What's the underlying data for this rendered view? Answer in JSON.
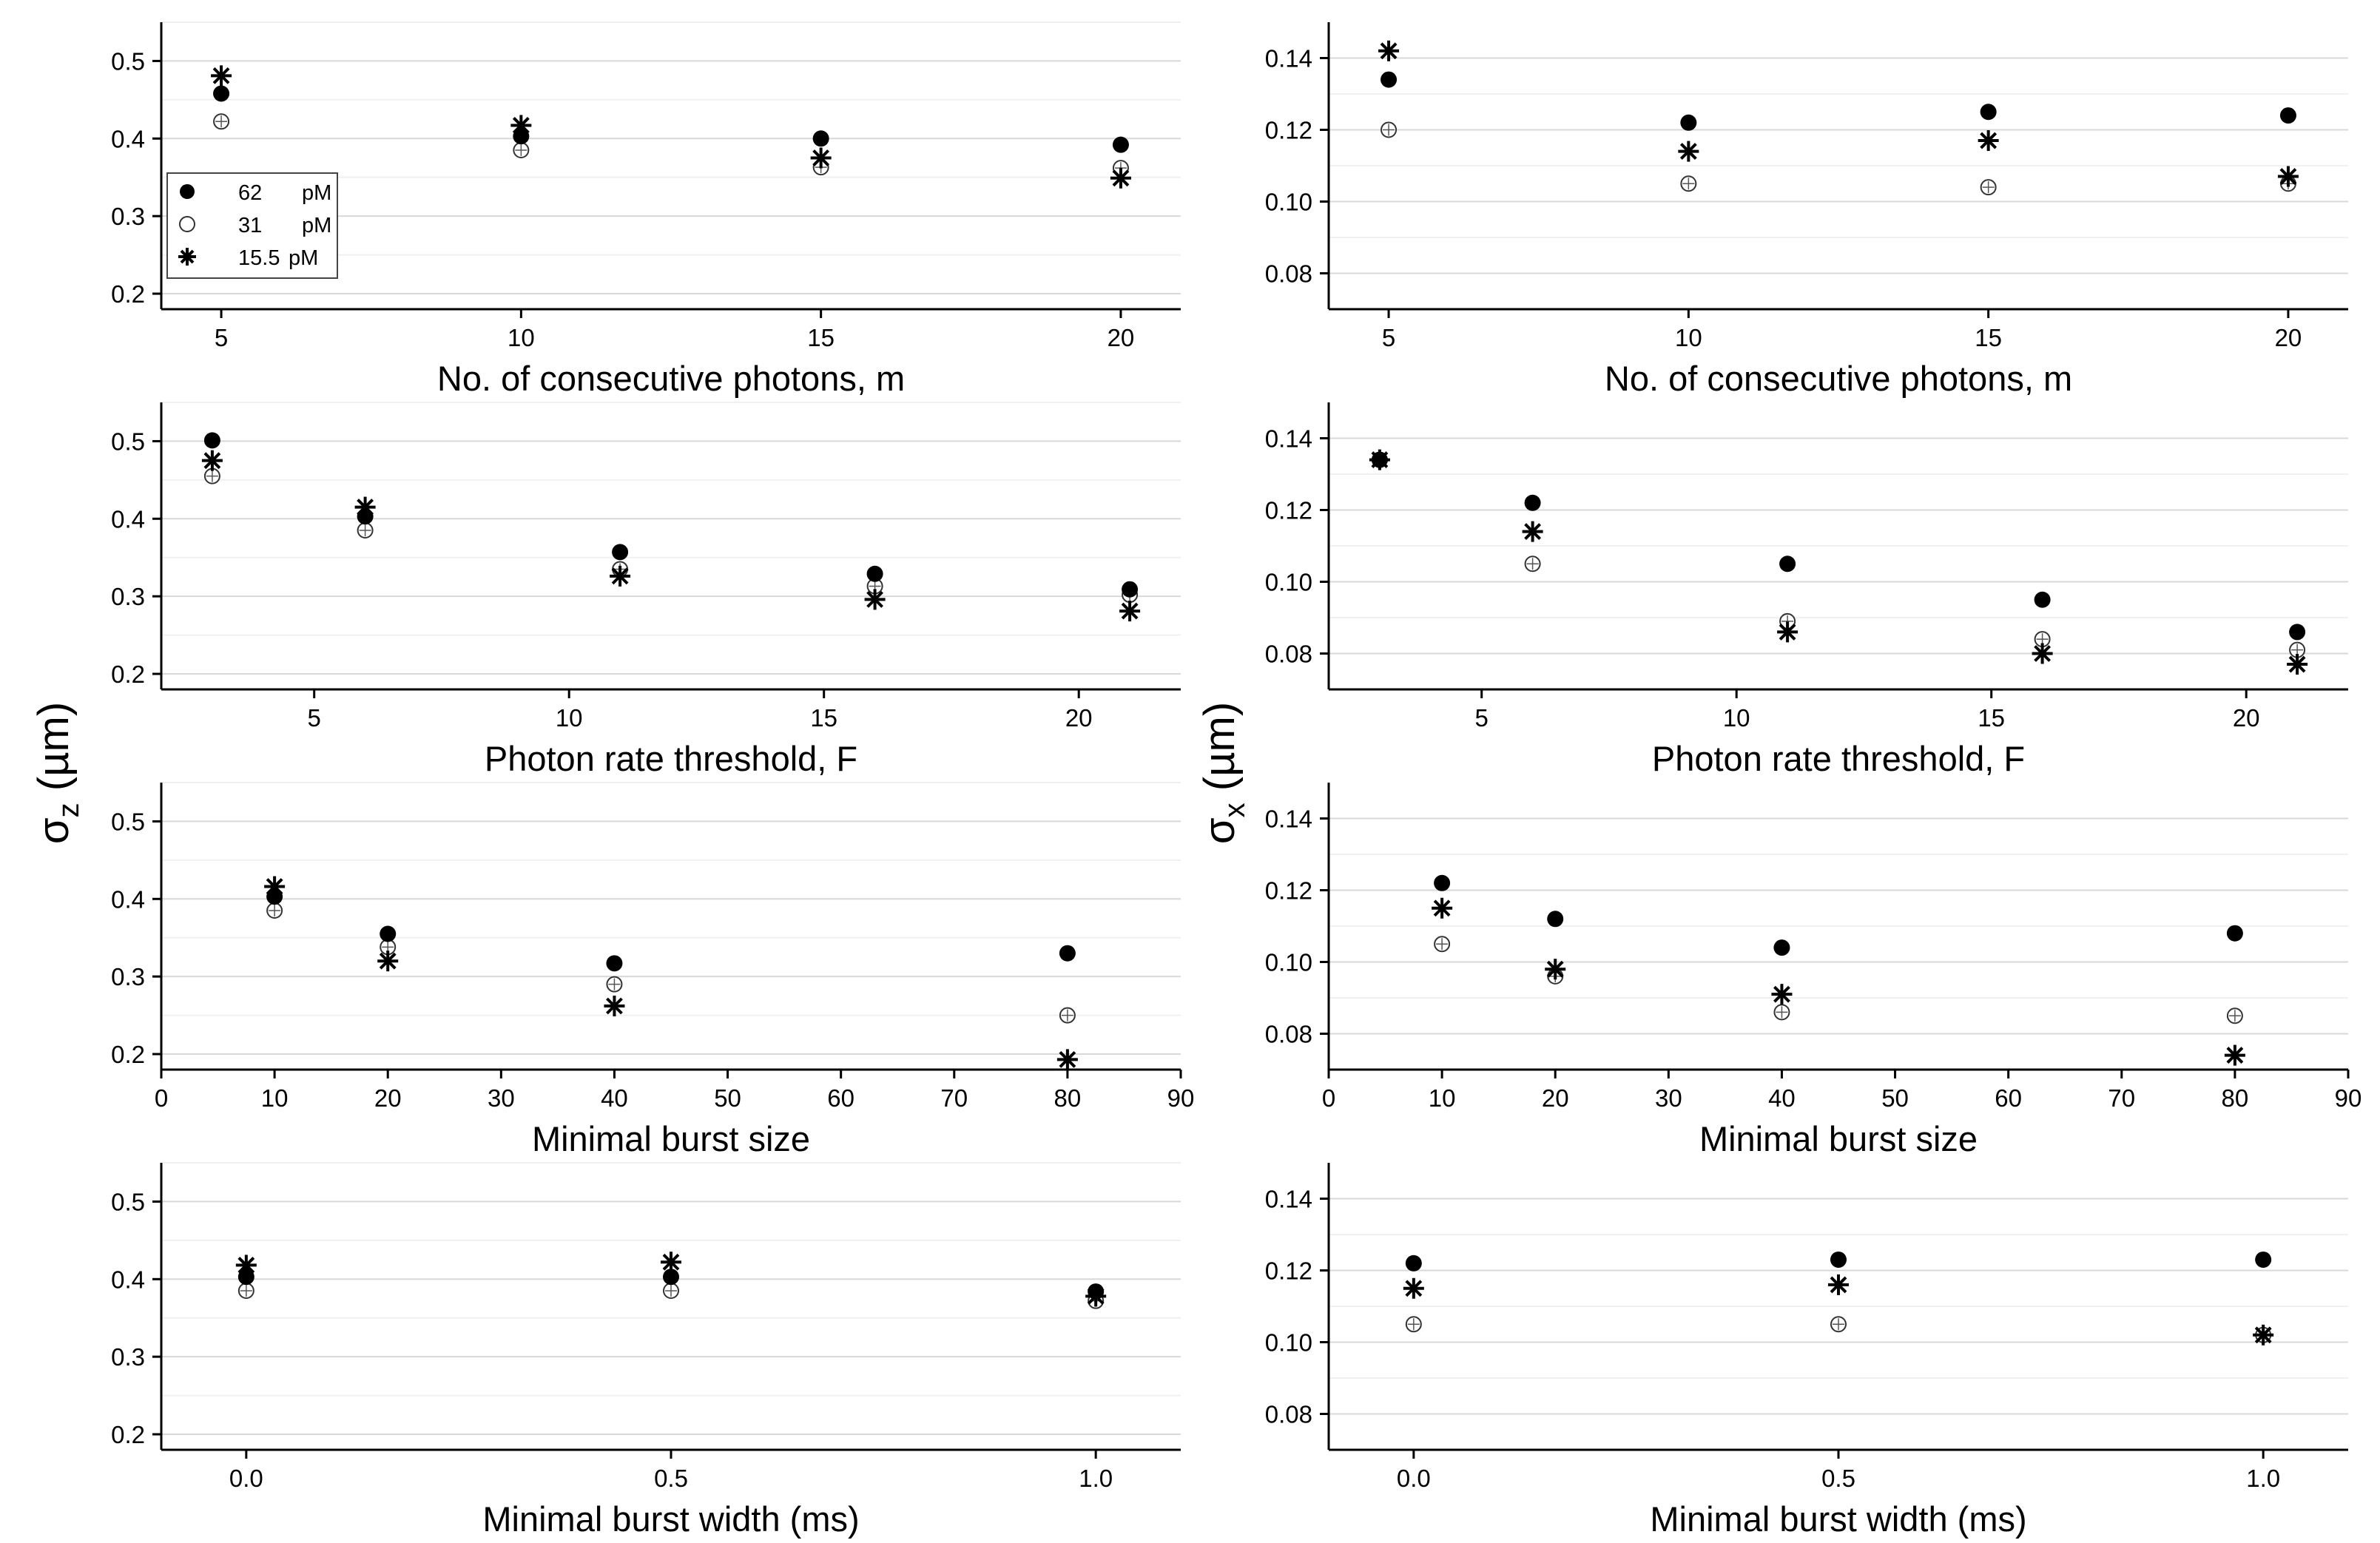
{
  "y_label_left": {
    "main": "σ",
    "sub": "z",
    "unit": "(µm)"
  },
  "y_label_right": {
    "main": "σ",
    "sub": "x",
    "unit": "(µm)"
  },
  "legend": [
    {
      "symbol": "filled-circle",
      "conc": "62",
      "unit": "pM"
    },
    {
      "symbol": "open-circle",
      "conc": "31",
      "unit": "pM"
    },
    {
      "symbol": "asterisk",
      "conc": "15.5",
      "unit": "pM"
    }
  ],
  "chart_data": [
    {
      "id": "z_m",
      "type": "scatter",
      "xlabel": "No. of consecutive photons, m",
      "ylabel": "σz (µm)",
      "xlim": [
        4,
        21
      ],
      "ylim": [
        0.18,
        0.55
      ],
      "xticks": [
        5,
        10,
        15,
        20
      ],
      "yticks": [
        0.2,
        0.3,
        0.4,
        0.5
      ],
      "ytick_labels": [
        "0.2",
        "0.3",
        "0.4",
        "0.5"
      ],
      "series": [
        {
          "name": "62 pM",
          "x": [
            5,
            10,
            15,
            20
          ],
          "y": [
            0.458,
            0.403,
            0.4,
            0.392
          ]
        },
        {
          "name": "31 pM",
          "x": [
            5,
            10,
            15,
            20
          ],
          "y": [
            0.422,
            0.385,
            0.363,
            0.362
          ]
        },
        {
          "name": "15.5 pM",
          "x": [
            5,
            10,
            15,
            20
          ],
          "y": [
            0.481,
            0.417,
            0.375,
            0.349
          ]
        }
      ]
    },
    {
      "id": "x_m",
      "type": "scatter",
      "xlabel": "No. of consecutive photons, m",
      "ylabel": "σx (µm)",
      "xlim": [
        4,
        21
      ],
      "ylim": [
        0.07,
        0.15
      ],
      "xticks": [
        5,
        10,
        15,
        20
      ],
      "yticks": [
        0.08,
        0.1,
        0.12,
        0.14
      ],
      "ytick_labels": [
        "0.08",
        "0.10",
        "0.12",
        "0.14"
      ],
      "series": [
        {
          "name": "62 pM",
          "x": [
            5,
            10,
            15,
            20
          ],
          "y": [
            0.134,
            0.122,
            0.125,
            0.124
          ]
        },
        {
          "name": "31 pM",
          "x": [
            5,
            10,
            15,
            20
          ],
          "y": [
            0.12,
            0.105,
            0.104,
            0.105
          ]
        },
        {
          "name": "15.5 pM",
          "x": [
            5,
            10,
            15,
            20
          ],
          "y": [
            0.142,
            0.114,
            0.117,
            0.107
          ]
        }
      ]
    },
    {
      "id": "z_F",
      "type": "scatter",
      "xlabel": "Photon rate threshold, F",
      "ylabel": "σz (µm)",
      "xlim": [
        2,
        22
      ],
      "ylim": [
        0.18,
        0.55
      ],
      "xticks": [
        5,
        10,
        15,
        20
      ],
      "yticks": [
        0.2,
        0.3,
        0.4,
        0.5
      ],
      "ytick_labels": [
        "0.2",
        "0.3",
        "0.4",
        "0.5"
      ],
      "series": [
        {
          "name": "62 pM",
          "x": [
            3,
            6,
            11,
            16,
            21
          ],
          "y": [
            0.501,
            0.403,
            0.357,
            0.329,
            0.309
          ]
        },
        {
          "name": "31 pM",
          "x": [
            3,
            6,
            11,
            16,
            21
          ],
          "y": [
            0.455,
            0.385,
            0.335,
            0.313,
            0.302
          ]
        },
        {
          "name": "15.5 pM",
          "x": [
            3,
            6,
            11,
            16,
            21
          ],
          "y": [
            0.475,
            0.415,
            0.326,
            0.296,
            0.281
          ]
        }
      ]
    },
    {
      "id": "x_F",
      "type": "scatter",
      "xlabel": "Photon rate threshold, F",
      "ylabel": "σx (µm)",
      "xlim": [
        2,
        22
      ],
      "ylim": [
        0.07,
        0.15
      ],
      "xticks": [
        5,
        10,
        15,
        20
      ],
      "yticks": [
        0.08,
        0.1,
        0.12,
        0.14
      ],
      "ytick_labels": [
        "0.08",
        "0.10",
        "0.12",
        "0.14"
      ],
      "series": [
        {
          "name": "62 pM",
          "x": [
            3,
            6,
            11,
            16,
            21
          ],
          "y": [
            0.134,
            0.122,
            0.105,
            0.095,
            0.086
          ]
        },
        {
          "name": "31 pM",
          "x": [
            3,
            6,
            11,
            16,
            21
          ],
          "y": [
            0.134,
            0.105,
            0.089,
            0.084,
            0.081
          ]
        },
        {
          "name": "15.5 pM",
          "x": [
            3,
            6,
            11,
            16,
            21
          ],
          "y": [
            0.134,
            0.114,
            0.086,
            0.08,
            0.077
          ]
        }
      ]
    },
    {
      "id": "z_size",
      "type": "scatter",
      "xlabel": "Minimal burst size",
      "ylabel": "σz (µm)",
      "xlim": [
        0,
        90
      ],
      "ylim": [
        0.18,
        0.55
      ],
      "xticks": [
        0,
        10,
        20,
        30,
        40,
        50,
        60,
        70,
        80,
        90
      ],
      "yticks": [
        0.2,
        0.3,
        0.4,
        0.5
      ],
      "ytick_labels": [
        "0.2",
        "0.3",
        "0.4",
        "0.5"
      ],
      "series": [
        {
          "name": "62 pM",
          "x": [
            10,
            20,
            40,
            80
          ],
          "y": [
            0.403,
            0.355,
            0.317,
            0.33
          ]
        },
        {
          "name": "31 pM",
          "x": [
            10,
            20,
            40,
            80
          ],
          "y": [
            0.385,
            0.338,
            0.29,
            0.25
          ]
        },
        {
          "name": "15.5 pM",
          "x": [
            10,
            20,
            40,
            80
          ],
          "y": [
            0.416,
            0.32,
            0.262,
            0.193
          ]
        }
      ]
    },
    {
      "id": "x_size",
      "type": "scatter",
      "xlabel": "Minimal burst size",
      "ylabel": "σx (µm)",
      "xlim": [
        0,
        90
      ],
      "ylim": [
        0.07,
        0.15
      ],
      "xticks": [
        0,
        10,
        20,
        30,
        40,
        50,
        60,
        70,
        80,
        90
      ],
      "yticks": [
        0.08,
        0.1,
        0.12,
        0.14
      ],
      "ytick_labels": [
        "0.08",
        "0.10",
        "0.12",
        "0.14"
      ],
      "series": [
        {
          "name": "62 pM",
          "x": [
            10,
            20,
            40,
            80
          ],
          "y": [
            0.122,
            0.112,
            0.104,
            0.108
          ]
        },
        {
          "name": "31 pM",
          "x": [
            10,
            20,
            40,
            80
          ],
          "y": [
            0.105,
            0.096,
            0.086,
            0.085
          ]
        },
        {
          "name": "15.5 pM",
          "x": [
            10,
            20,
            40,
            80
          ],
          "y": [
            0.115,
            0.098,
            0.091,
            0.074
          ]
        }
      ]
    },
    {
      "id": "z_width",
      "type": "scatter",
      "xlabel": "Minimal burst width (ms)",
      "ylabel": "σz (µm)",
      "xlim": [
        -0.1,
        1.1
      ],
      "ylim": [
        0.18,
        0.55
      ],
      "xticks": [
        0.0,
        0.5,
        1.0
      ],
      "xtick_labels": [
        "0.0",
        "0.5",
        "1.0"
      ],
      "yticks": [
        0.2,
        0.3,
        0.4,
        0.5
      ],
      "ytick_labels": [
        "0.2",
        "0.3",
        "0.4",
        "0.5"
      ],
      "series": [
        {
          "name": "62 pM",
          "x": [
            0.0,
            0.5,
            1.0
          ],
          "y": [
            0.403,
            0.403,
            0.384
          ]
        },
        {
          "name": "31 pM",
          "x": [
            0.0,
            0.5,
            1.0
          ],
          "y": [
            0.385,
            0.385,
            0.372
          ]
        },
        {
          "name": "15.5 pM",
          "x": [
            0.0,
            0.5,
            1.0
          ],
          "y": [
            0.418,
            0.422,
            0.378
          ]
        }
      ]
    },
    {
      "id": "x_width",
      "type": "scatter",
      "xlabel": "Minimal burst width (ms)",
      "ylabel": "σx (µm)",
      "xlim": [
        -0.1,
        1.1
      ],
      "ylim": [
        0.07,
        0.15
      ],
      "xticks": [
        0.0,
        0.5,
        1.0
      ],
      "xtick_labels": [
        "0.0",
        "0.5",
        "1.0"
      ],
      "yticks": [
        0.08,
        0.1,
        0.12,
        0.14
      ],
      "ytick_labels": [
        "0.08",
        "0.10",
        "0.12",
        "0.14"
      ],
      "series": [
        {
          "name": "62 pM",
          "x": [
            0.0,
            0.5,
            1.0
          ],
          "y": [
            0.122,
            0.123,
            0.123
          ]
        },
        {
          "name": "31 pM",
          "x": [
            0.0,
            0.5,
            1.0
          ],
          "y": [
            0.105,
            0.105,
            0.102
          ]
        },
        {
          "name": "15.5 pM",
          "x": [
            0.0,
            0.5,
            1.0
          ],
          "y": [
            0.115,
            0.116,
            0.102
          ]
        }
      ]
    }
  ]
}
